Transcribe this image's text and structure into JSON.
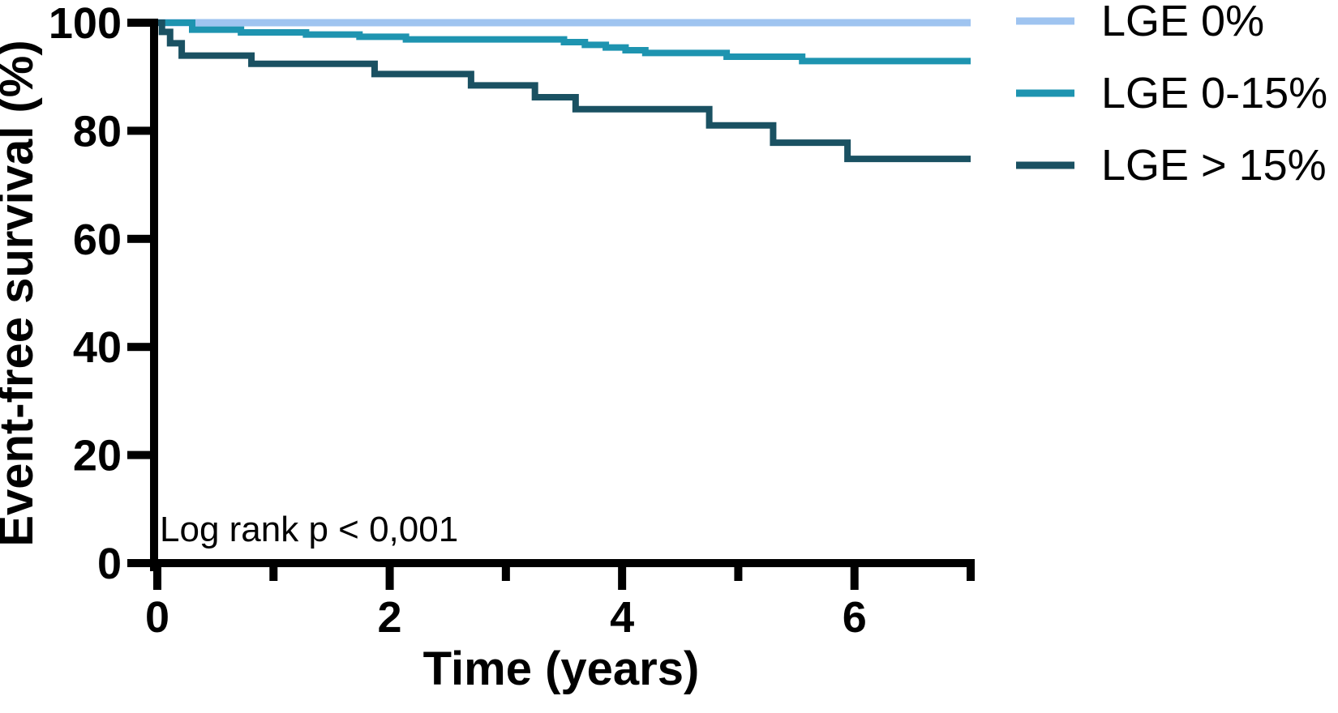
{
  "chart_data": {
    "type": "line",
    "subtype": "kaplan-meier-step-survival",
    "title": "",
    "xlabel": "Time (years)",
    "ylabel": "Event-free survival (%)",
    "annotation": "Log rank p < 0,001",
    "xlim": [
      0,
      7
    ],
    "ylim": [
      0,
      100
    ],
    "x_major_ticks": [
      0,
      2,
      4,
      6
    ],
    "x_minor_ticks": [
      1,
      3,
      5,
      7
    ],
    "y_ticks": [
      100,
      80,
      60,
      40,
      20,
      0
    ],
    "grid": false,
    "legend_position": "outside-top-right",
    "axis_color": "#000000",
    "text_color": "#000000",
    "series": [
      {
        "name": "LGE 0%",
        "color": "#9fc4f0",
        "stroke_width": 9,
        "steps": [
          [
            0,
            100
          ]
        ]
      },
      {
        "name": "LGE 0-15%",
        "color": "#1e94b0",
        "stroke_width": 8,
        "steps": [
          [
            0,
            100
          ],
          [
            0.3,
            98.7
          ],
          [
            0.72,
            98.2
          ],
          [
            1.28,
            97.8
          ],
          [
            1.74,
            97.4
          ],
          [
            2.14,
            96.9
          ],
          [
            3.5,
            96.4
          ],
          [
            3.68,
            95.9
          ],
          [
            3.86,
            95.4
          ],
          [
            4.03,
            94.9
          ],
          [
            4.2,
            94.4
          ],
          [
            4.9,
            93.7
          ],
          [
            5.55,
            92.9
          ]
        ]
      },
      {
        "name": "LGE > 15%",
        "color": "#1a5162",
        "stroke_width": 8,
        "steps": [
          [
            0,
            100
          ],
          [
            0.04,
            98.3
          ],
          [
            0.11,
            96.2
          ],
          [
            0.21,
            93.9
          ],
          [
            0.81,
            92.4
          ],
          [
            1.87,
            90.5
          ],
          [
            2.7,
            88.4
          ],
          [
            3.25,
            86.2
          ],
          [
            3.6,
            84.0
          ],
          [
            4.75,
            81.0
          ],
          [
            5.3,
            77.8
          ],
          [
            5.94,
            74.8
          ]
        ]
      }
    ]
  }
}
